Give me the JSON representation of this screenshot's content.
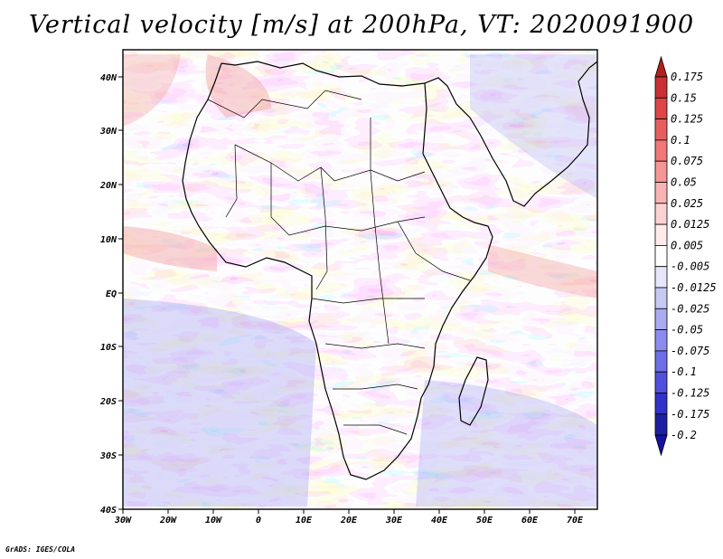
{
  "title": "Vertical velocity [m/s] at 200hPa, VT: 2020091900",
  "credit": "GrADS: IGES/COLA",
  "map": {
    "lon_labels": [
      "30W",
      "20W",
      "10W",
      "0",
      "10E",
      "20E",
      "30E",
      "40E",
      "50E",
      "60E",
      "70E"
    ],
    "lat_labels": [
      "40N",
      "30N",
      "20N",
      "10N",
      "EQ",
      "10S",
      "20S",
      "30S",
      "40S"
    ]
  },
  "colorbar": {
    "labels": [
      "0.175",
      "0.15",
      "0.125",
      "0.1",
      "0.075",
      "0.05",
      "0.025",
      "0.0125",
      "0.005",
      "-0.005",
      "-0.0125",
      "-0.025",
      "-0.05",
      "-0.075",
      "-0.1",
      "-0.125",
      "-0.175",
      "-0.2"
    ],
    "colors": [
      "#b41e1e",
      "#c83232",
      "#dc4646",
      "#e65f5f",
      "#f07878",
      "#f59696",
      "#f8b4b4",
      "#fbd2d2",
      "#ffebeb",
      "#ffffff",
      "#e6e6fa",
      "#c8c8f5",
      "#aaaaf0",
      "#8c8cf0",
      "#6e6ee6",
      "#5050dc",
      "#3232c8",
      "#1e1ea0",
      "#1414a0"
    ]
  }
}
